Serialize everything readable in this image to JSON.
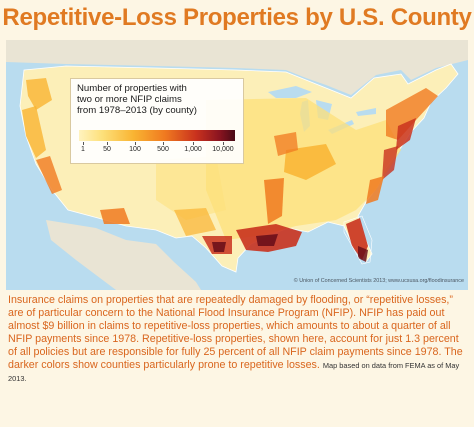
{
  "title": "Repetitive-Loss Properties by U.S. County",
  "legend": {
    "title_lines": [
      "Number of properties with",
      "two or more NFIP claims",
      "from 1978–2013 (by county)"
    ],
    "scale_labels": [
      "1",
      "50",
      "100",
      "500",
      "1,000",
      "10,000"
    ]
  },
  "credit": "© Union of Concerned Scientists 2013; www.ucsusa.org/floodinsurance",
  "caption": {
    "body": "Insurance claims on properties that are repeatedly damaged by flooding, or “repetitive losses,” are of particular concern to the National Flood Insurance Program (NFIP). NFIP has paid out almost $9 billion in claims to repetitive-loss properties, which amounts to about a quarter of all NFIP payments since 1978. Repetitive-loss properties, shown here, account for just 1.3 percent of all policies but are responsible for fully 25 percent of all NFIP claim payments since 1978. The darker colors show counties particularly prone to repetitive losses.",
    "source": "Map based on data from FEMA as of May 2013."
  },
  "colors": {
    "title": "#e07a22",
    "water": "#b9dcef",
    "land_base": "#fcefb8",
    "low": "#fde07a",
    "mid": "#f9b432",
    "high": "#f07a20",
    "very_high": "#c9321e",
    "extreme": "#6b0f1a"
  }
}
